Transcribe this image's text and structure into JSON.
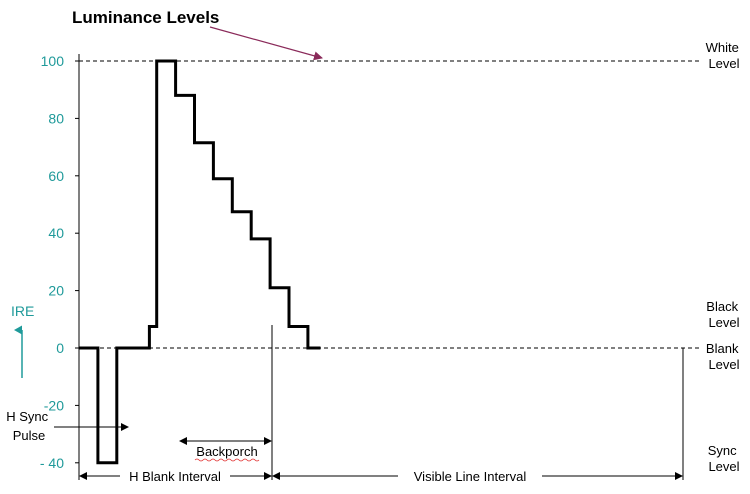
{
  "chart_data": {
    "type": "line",
    "title": "Luminance Levels",
    "ylabel": "IRE",
    "ylim": [
      -40,
      100
    ],
    "yticks": [
      "100",
      "80",
      "60",
      "40",
      "20",
      "0",
      "-20",
      "- 40"
    ],
    "grid": false,
    "series": [
      {
        "x": [
          0,
          0.09,
          0.09,
          0.18,
          0.18,
          0.335,
          0.335,
          0.37,
          0.37,
          0.46,
          0.46,
          0.55,
          0.55,
          0.64,
          0.64,
          0.73,
          0.73,
          0.82,
          0.82,
          0.91,
          0.91,
          1.0,
          1.0,
          1.09,
          1.09,
          1.15
        ],
        "values": [
          0,
          0,
          -40,
          -40,
          0,
          0,
          7.5,
          7.5,
          100,
          100,
          88,
          88,
          71.5,
          71.5,
          59,
          59,
          47.5,
          47.5,
          38,
          38,
          21,
          21,
          7.5,
          7.5,
          0,
          0
        ]
      }
    ],
    "right_labels": [
      {
        "lines": [
          "White",
          "Level"
        ],
        "level": 100
      },
      {
        "lines": [
          "Black",
          "Level"
        ],
        "level": 7.5
      },
      {
        "lines": [
          "Blank",
          "Level"
        ],
        "level": 0
      },
      {
        "lines": [
          "Sync",
          "Level"
        ],
        "level": -40
      }
    ],
    "annotations": {
      "h_sync_pulse": [
        "H Sync",
        "Pulse"
      ],
      "backporch": "Backporch",
      "h_blank_interval": "H Blank Interval",
      "visible_line_interval": "Visible Line Interval"
    }
  }
}
